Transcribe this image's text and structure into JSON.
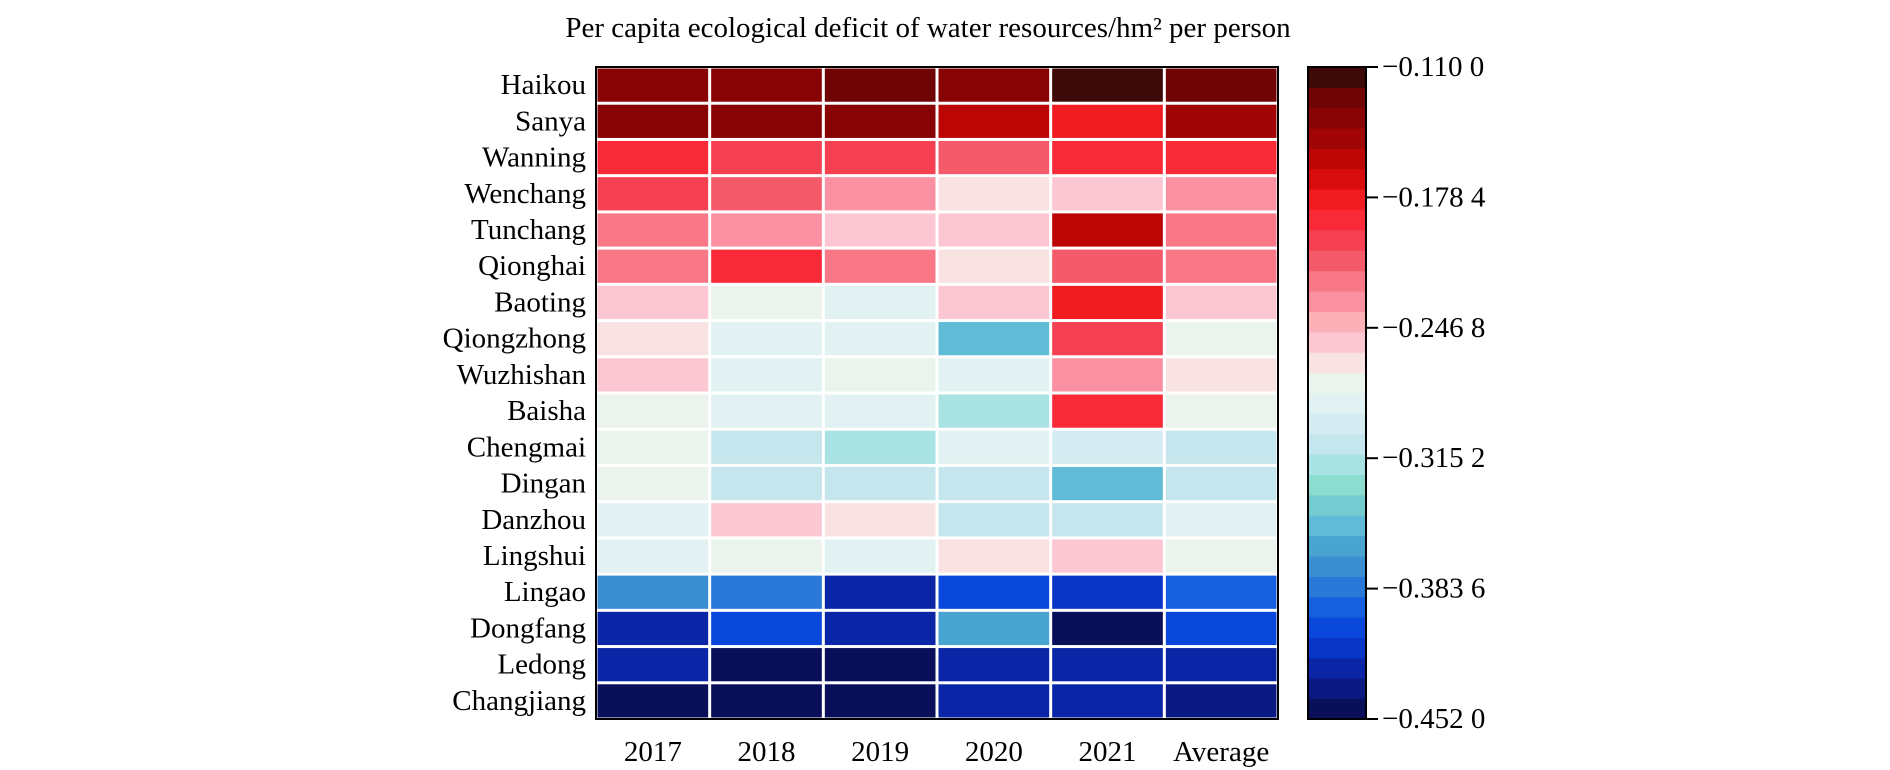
{
  "chart_data": {
    "type": "heatmap",
    "title": "Per capita ecological deficit of water resources/hm² per person",
    "rows": [
      "Haikou",
      "Sanya",
      "Wanning",
      "Wenchang",
      "Tunchang",
      "Qionghai",
      "Baoting",
      "Qiongzhong",
      "Wuzhishan",
      "Baisha",
      "Chengmai",
      "Dingan",
      "Danzhou",
      "Lingshui",
      "Lingao",
      "Dongfang",
      "Ledong",
      "Changjiang"
    ],
    "columns": [
      "2017",
      "2018",
      "2019",
      "2020",
      "2021",
      "Average"
    ],
    "values": [
      [
        -0.135,
        -0.135,
        -0.124,
        -0.135,
        -0.112,
        -0.124
      ],
      [
        -0.135,
        -0.135,
        -0.135,
        -0.158,
        -0.18,
        -0.148
      ],
      [
        -0.185,
        -0.2,
        -0.2,
        -0.215,
        -0.185,
        -0.195
      ],
      [
        -0.2,
        -0.215,
        -0.235,
        -0.265,
        -0.25,
        -0.235
      ],
      [
        -0.225,
        -0.235,
        -0.25,
        -0.25,
        -0.158,
        -0.225
      ],
      [
        -0.225,
        -0.195,
        -0.225,
        -0.265,
        -0.21,
        -0.225
      ],
      [
        -0.25,
        -0.275,
        -0.285,
        -0.25,
        -0.18,
        -0.25
      ],
      [
        -0.265,
        -0.285,
        -0.285,
        -0.35,
        -0.2,
        -0.275
      ],
      [
        -0.25,
        -0.285,
        -0.275,
        -0.285,
        -0.235,
        -0.265
      ],
      [
        -0.275,
        -0.285,
        -0.285,
        -0.32,
        -0.195,
        -0.275
      ],
      [
        -0.275,
        -0.305,
        -0.32,
        -0.285,
        -0.3,
        -0.305
      ],
      [
        -0.275,
        -0.305,
        -0.31,
        -0.31,
        -0.35,
        -0.31
      ],
      [
        -0.285,
        -0.25,
        -0.265,
        -0.305,
        -0.305,
        -0.285
      ],
      [
        -0.285,
        -0.275,
        -0.285,
        -0.265,
        -0.25,
        -0.275
      ],
      [
        -0.37,
        -0.385,
        -0.42,
        -0.405,
        -0.41,
        -0.395
      ],
      [
        -0.42,
        -0.405,
        -0.42,
        -0.36,
        -0.452,
        -0.405
      ],
      [
        -0.42,
        -0.445,
        -0.452,
        -0.43,
        -0.43,
        -0.43
      ],
      [
        -0.445,
        -0.452,
        -0.45,
        -0.43,
        -0.42,
        -0.44
      ]
    ],
    "colorbar": {
      "min": -0.452,
      "max": -0.11,
      "tick_values": [
        -0.11,
        -0.1784,
        -0.2468,
        -0.3152,
        -0.3836,
        -0.452
      ],
      "tick_labels": [
        "−0.110 0",
        "−0.178 4",
        "−0.246 8",
        "−0.315 2",
        "−0.383 6",
        "−0.452 0"
      ],
      "colors_low_to_high": [
        "#0a0f5a",
        "#0a1a82",
        "#0a26a6",
        "#0a36c8",
        "#0a48dc",
        "#1660e0",
        "#2a78d8",
        "#3a8ed2",
        "#4aa4d2",
        "#60bcd6",
        "#74ccd0",
        "#8cdcd0",
        "#a8e2e2",
        "#c4e6ec",
        "#d4ecf2",
        "#e2f2f2",
        "#eaf4ec",
        "#f8e2e2",
        "#fcc6d2",
        "#fcb0b8",
        "#fa90a2",
        "#f87888",
        "#f45a6a",
        "#f44050",
        "#f82a38",
        "#f01c22",
        "#d80c0c",
        "#bc0606",
        "#a00404",
        "#880404",
        "#700404",
        "#3c0808"
      ]
    }
  }
}
